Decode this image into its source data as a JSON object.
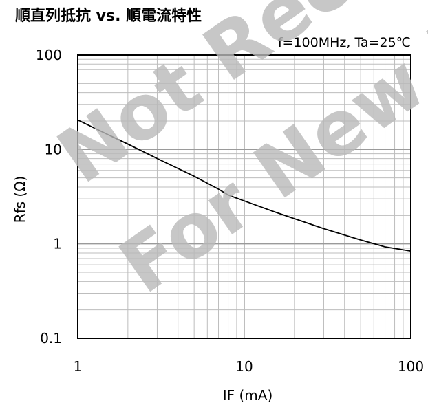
{
  "chart_data": {
    "type": "line",
    "title": "順直列抵抗 vs. 順電流特性",
    "subtitle": "f=100MHz, Ta=25℃",
    "xlabel": "IF (mA)",
    "ylabel": "Rfs (Ω)",
    "xscale": "log",
    "yscale": "log",
    "xlim": [
      1,
      100
    ],
    "ylim": [
      0.1,
      100
    ],
    "grid": true,
    "x_tick_labels": [
      "1",
      "10",
      "100"
    ],
    "y_tick_labels": [
      "100",
      "10",
      "1",
      "0.1"
    ],
    "series": [
      {
        "x": [
          1,
          1.5,
          2,
          3,
          5,
          7,
          8,
          10,
          15,
          20,
          30,
          50,
          70,
          100
        ],
        "y": [
          20.5,
          14.5,
          11.4,
          8.0,
          5.2,
          3.8,
          3.3,
          2.85,
          2.2,
          1.85,
          1.45,
          1.1,
          0.93,
          0.84
        ]
      }
    ]
  },
  "watermark": {
    "line1": "Not Recommended",
    "line2": "For New Design"
  }
}
